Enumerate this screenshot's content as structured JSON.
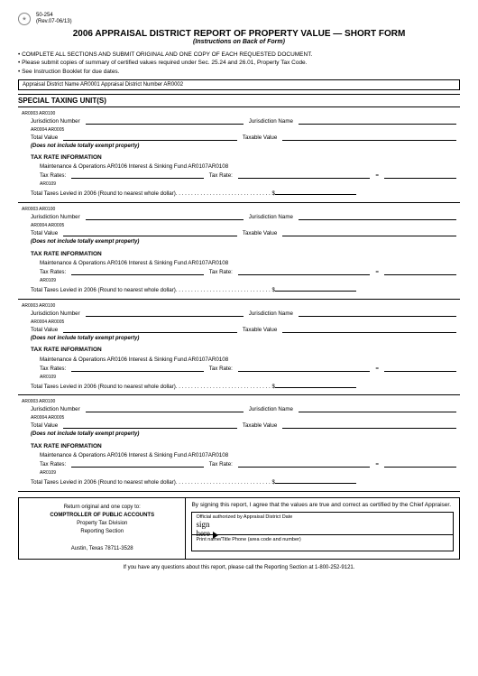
{
  "form_number": "50-254",
  "revision": "(Rev.07-06/13)",
  "title": "2006 APPRAISAL DISTRICT REPORT OF PROPERTY VALUE — SHORT FORM",
  "subtitle": "(Instructions on Back of Form)",
  "bullets": [
    "COMPLETE ALL SECTIONS AND SUBMIT ORIGINAL AND ONE COPY OF EACH REQUESTED DOCUMENT.",
    "Please submit copies of summary of certified values required under Sec. 25.24 and 26.01, Property Tax Code.",
    "See Instruction Booklet for due dates."
  ],
  "district_row": "Appraisal District Name AR0001 Appraisal District Number AR0002",
  "section_header": "SPECIAL TAXING UNIT(S)",
  "unit": {
    "code_top": "AR0003 AR0100",
    "jur_num": "Jurisdiction Number",
    "jur_name": "Jurisdiction Name",
    "code_mid": "AR0004 AR0005",
    "total_val": "Total Value",
    "tax_val": "Taxable Value",
    "note": "(Does not include totally exempt property)",
    "tri_hdr": "TAX RATE INFORMATION",
    "mo_line": "Maintenance & Operations AR0106 Interest & Sinking Fund  AR0107AR0108",
    "tax_rates": "Tax Rates:",
    "tax_rate": "Tax Rate:",
    "code_bot": "AR0109",
    "levied": "Total Taxes Levied in 2006 (Round to nearest whole dollar). . . . . . . . . . . . . . . . . . . . . . . . . . . . . . . $"
  },
  "footer": {
    "return": "Return original and one copy to:",
    "comp": "COMPTROLLER OF PUBLIC ACCOUNTS",
    "div": "Property Tax Division",
    "sec": "Reporting Section",
    "addr": "Austin, Texas 78711-3528",
    "cert": "By signing this report, I agree that the values are true and correct as certified by the Chief Appraiser.",
    "sig_lbl": "Official authorized by Appraisal District Date",
    "sign": "sign",
    "here": "here",
    "name_lbl": "Print name/Title Phone (area code and number)"
  },
  "foot_note": "If you have any questions about this report, please call the Reporting Section at 1-800-252-9121."
}
